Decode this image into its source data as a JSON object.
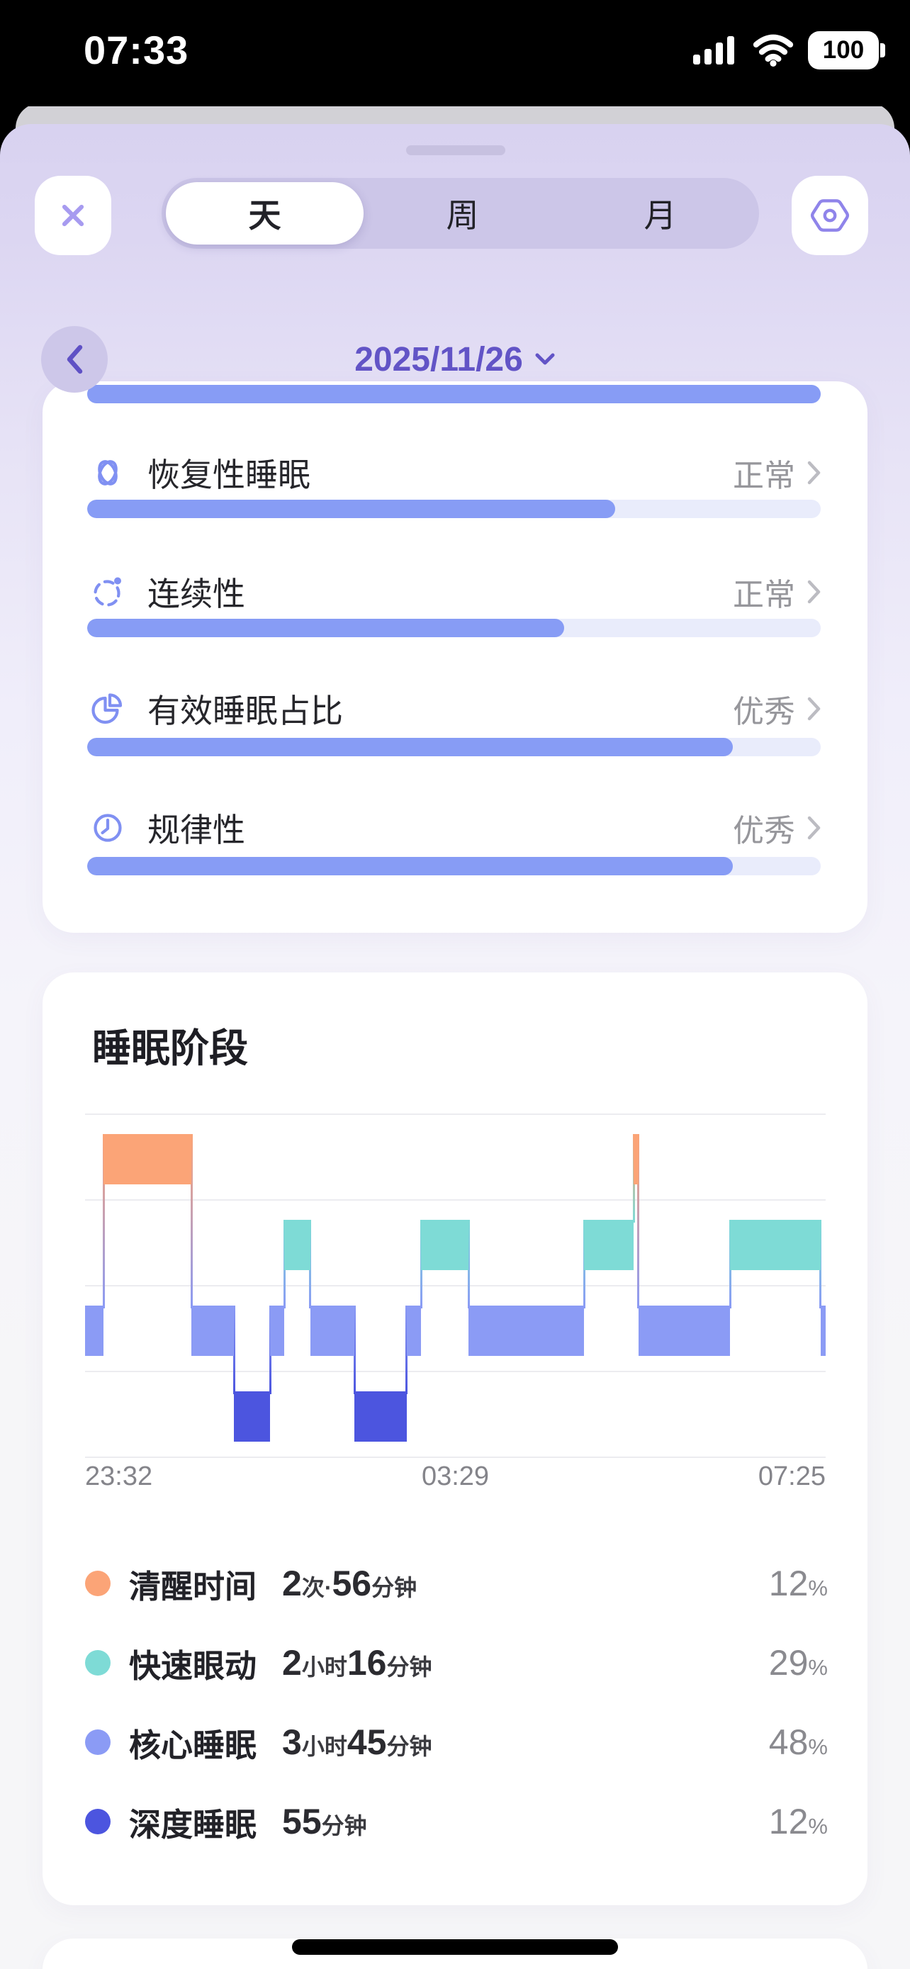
{
  "status_bar": {
    "time": "07:33",
    "battery_level": "100"
  },
  "sheet": {
    "tabs": [
      {
        "label": "天",
        "selected": true
      },
      {
        "label": "周",
        "selected": false
      },
      {
        "label": "月",
        "selected": false
      }
    ]
  },
  "date_nav": {
    "date": "2025/11/26"
  },
  "sleep_quality": {
    "top_bar_progress": 100,
    "rows": [
      {
        "icon": "restorative-sleep-icon",
        "label": "恢复性睡眠",
        "status": "正常",
        "progress": 72
      },
      {
        "icon": "continuity-icon",
        "label": "连续性",
        "status": "正常",
        "progress": 65
      },
      {
        "icon": "effective-sleep-icon",
        "label": "有效睡眠占比",
        "status": "优秀",
        "progress": 88
      },
      {
        "icon": "regularity-icon",
        "label": "规律性",
        "status": "优秀",
        "progress": 88
      }
    ]
  },
  "chart_data": {
    "type": "hypnogram-step",
    "title": "睡眠阶段",
    "x_ticks": [
      "23:32",
      "03:29",
      "07:25"
    ],
    "time_range": {
      "start": "23:32",
      "end": "07:25"
    },
    "grid": true,
    "stages": [
      {
        "key": "awake",
        "label": "清醒时间",
        "color": "#FBA477"
      },
      {
        "key": "rem",
        "label": "快速眼动",
        "color": "#7EDBD6"
      },
      {
        "key": "core",
        "label": "核心睡眠",
        "color": "#8B9BF5"
      },
      {
        "key": "deep",
        "label": "深度睡眠",
        "color": "#4C55DF"
      }
    ],
    "segments": [
      {
        "stage": "core",
        "start": 0.0,
        "end": 0.025
      },
      {
        "stage": "awake",
        "start": 0.025,
        "end": 0.144
      },
      {
        "stage": "core",
        "start": 0.144,
        "end": 0.201
      },
      {
        "stage": "deep",
        "start": 0.201,
        "end": 0.25
      },
      {
        "stage": "core",
        "start": 0.25,
        "end": 0.269
      },
      {
        "stage": "rem",
        "start": 0.269,
        "end": 0.304
      },
      {
        "stage": "core",
        "start": 0.304,
        "end": 0.364
      },
      {
        "stage": "deep",
        "start": 0.364,
        "end": 0.434
      },
      {
        "stage": "core",
        "start": 0.434,
        "end": 0.454
      },
      {
        "stage": "rem",
        "start": 0.454,
        "end": 0.518
      },
      {
        "stage": "core",
        "start": 0.518,
        "end": 0.674
      },
      {
        "stage": "rem",
        "start": 0.674,
        "end": 0.741
      },
      {
        "stage": "awake",
        "start": 0.741,
        "end": 0.747
      },
      {
        "stage": "core",
        "start": 0.747,
        "end": 0.871
      },
      {
        "stage": "rem",
        "start": 0.871,
        "end": 0.993
      },
      {
        "stage": "core",
        "start": 0.993,
        "end": 1.0
      }
    ],
    "legend": [
      {
        "stage": "awake",
        "label": "清醒时间",
        "value_parts": [
          {
            "t": "2",
            "lg": true
          },
          {
            "t": "次",
            "lg": false
          },
          {
            "t": " · ",
            "lg": false
          },
          {
            "t": "56",
            "lg": true
          },
          {
            "t": "分钟",
            "lg": false
          }
        ],
        "percent": "12"
      },
      {
        "stage": "rem",
        "label": "快速眼动",
        "value_parts": [
          {
            "t": "2",
            "lg": true
          },
          {
            "t": "小时",
            "lg": false
          },
          {
            "t": "16",
            "lg": true
          },
          {
            "t": "分钟",
            "lg": false
          }
        ],
        "percent": "29"
      },
      {
        "stage": "core",
        "label": "核心睡眠",
        "value_parts": [
          {
            "t": "3",
            "lg": true
          },
          {
            "t": "小时",
            "lg": false
          },
          {
            "t": "45",
            "lg": true
          },
          {
            "t": "分钟",
            "lg": false
          }
        ],
        "percent": "48"
      },
      {
        "stage": "deep",
        "label": "深度睡眠",
        "value_parts": [
          {
            "t": "55",
            "lg": true
          },
          {
            "t": "分钟",
            "lg": false
          }
        ],
        "percent": "12"
      }
    ]
  },
  "colors": {
    "progress_fill": "#879CF5",
    "progress_track": "#E9ECFB",
    "accent_purple": "#6254C6",
    "icon_purple": "#8090F2",
    "status_gray": "#96969B"
  }
}
